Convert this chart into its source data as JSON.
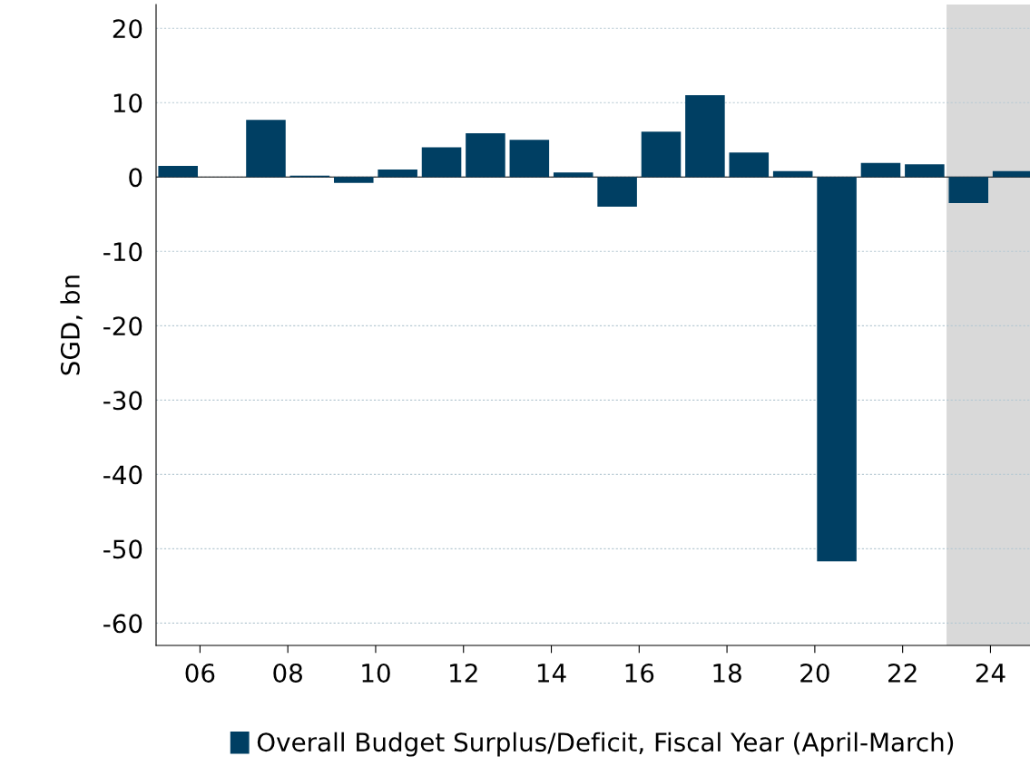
{
  "chart_data": {
    "type": "bar",
    "ylabel": "SGD, bn",
    "x": [
      2005.5,
      2006.5,
      2007.5,
      2008.5,
      2009.5,
      2010.5,
      2011.5,
      2012.5,
      2013.5,
      2014.5,
      2015.5,
      2016.5,
      2017.5,
      2018.5,
      2019.5,
      2020.5,
      2021.5,
      2022.5,
      2023.5,
      2024.5
    ],
    "series": [
      {
        "name": "Overall Budget Surplus/Deficit, Fiscal Year (April-March)",
        "color": "#003f63",
        "values": [
          1.5,
          0,
          7.7,
          0.2,
          -0.8,
          1.0,
          4.0,
          5.9,
          5.0,
          0.6,
          -4.0,
          6.1,
          11.0,
          3.3,
          0.8,
          -51.7,
          1.9,
          1.7,
          -3.5,
          0.8
        ]
      }
    ],
    "xlim": [
      2005,
      2024.9
    ],
    "xticks": [
      {
        "value": 2006,
        "label": "06"
      },
      {
        "value": 2008,
        "label": "08"
      },
      {
        "value": 2010,
        "label": "10"
      },
      {
        "value": 2012,
        "label": "12"
      },
      {
        "value": 2014,
        "label": "14"
      },
      {
        "value": 2016,
        "label": "16"
      },
      {
        "value": 2018,
        "label": "18"
      },
      {
        "value": 2020,
        "label": "20"
      },
      {
        "value": 2022,
        "label": "22"
      },
      {
        "value": 2024,
        "label": "24"
      }
    ],
    "ylim": [
      -63,
      23.2
    ],
    "yticks": [
      -60,
      -50,
      -40,
      -30,
      -20,
      -10,
      0,
      10,
      20
    ],
    "ref_lines": [
      {
        "axis": "y",
        "value": 0,
        "color": "#000000"
      }
    ],
    "bands": [
      {
        "axis": "x",
        "from": 2023,
        "to": 2024.9,
        "color": "#d9d9d9"
      }
    ],
    "grid": "y",
    "legend": "bottom"
  }
}
